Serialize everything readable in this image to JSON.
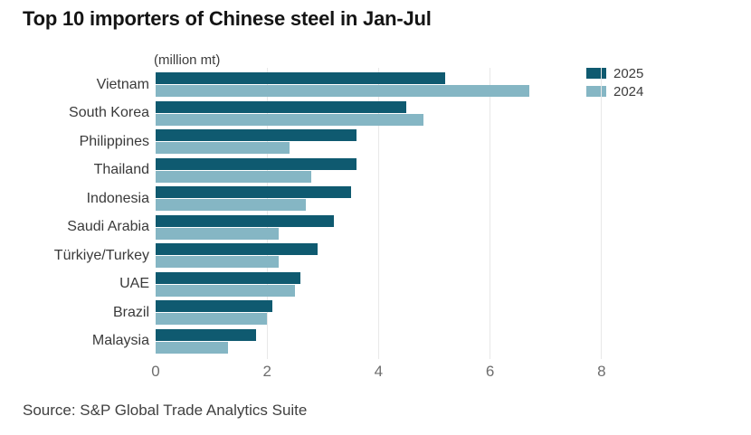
{
  "title": "Top 10 importers of Chinese steel in Jan-Jul",
  "unit_label": "(million mt)",
  "source": "Source: S&P Global Trade Analytics Suite",
  "colors": {
    "series_2025": "#0f5a70",
    "series_2024": "#85b6c4",
    "gridline": "#e8e8e8",
    "title_text": "#141414",
    "axis_text": "#6e6e6e",
    "label_text": "#3a3a3a"
  },
  "chart_data": {
    "type": "bar",
    "orientation": "horizontal",
    "title": "Top 10 importers of Chinese steel in Jan-Jul",
    "subtitle": "(million mt)",
    "categories": [
      "Vietnam",
      "South Korea",
      "Philippines",
      "Thailand",
      "Indonesia",
      "Saudi Arabia",
      "Türkiye/Turkey",
      "UAE",
      "Brazil",
      "Malaysia"
    ],
    "series": [
      {
        "name": "2025",
        "color": "#0f5a70",
        "values": [
          5.2,
          4.5,
          3.6,
          3.6,
          3.5,
          3.2,
          2.9,
          2.6,
          2.1,
          1.8
        ]
      },
      {
        "name": "2024",
        "color": "#85b6c4",
        "values": [
          6.7,
          4.8,
          2.4,
          2.8,
          2.7,
          2.2,
          2.2,
          2.5,
          2.0,
          1.3
        ]
      }
    ],
    "xlabel": "",
    "ylabel": "",
    "x_ticks": [
      0,
      2,
      4,
      6,
      8
    ],
    "xlim": [
      0,
      9.1
    ],
    "grid": "vertical",
    "legend_position": "top-right"
  }
}
